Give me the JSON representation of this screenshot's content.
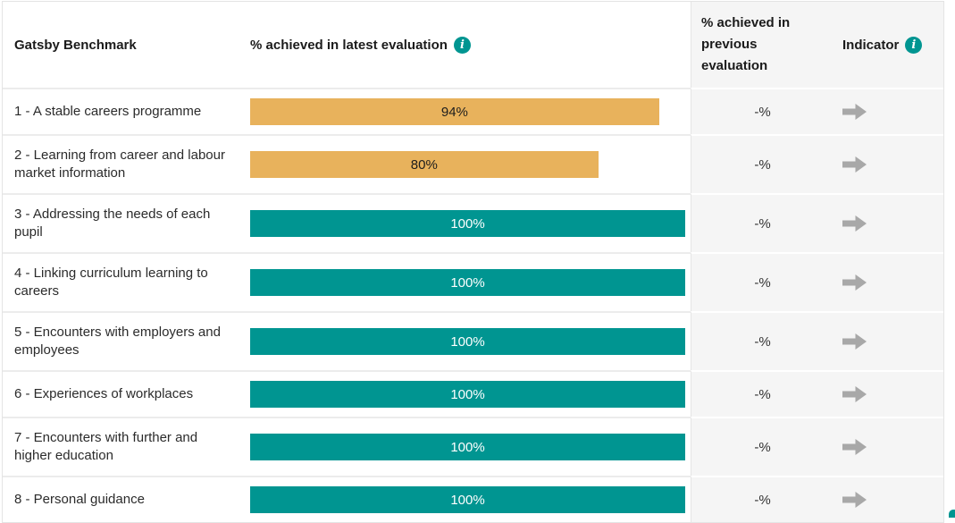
{
  "colors": {
    "teal": "#009591",
    "gold": "#E8B25C",
    "panel_background": "#F5F5F5",
    "bar_text_on_teal": "#FFFFFF",
    "bar_text_on_gold": "#1D1D1D",
    "arrow_gray": "#A8A8A8",
    "divider_white_region": "#ECECEC",
    "divider_gray_region": "#FFFFFF"
  },
  "header": {
    "benchmark_label": "Gatsby Benchmark",
    "latest_label": "% achieved in latest evaluation",
    "previous_label": "% achieved in previous evaluation",
    "indicator_label": "Indicator"
  },
  "icons": {
    "info_glyph": "i",
    "indicator_icon": "right-arrow"
  },
  "rows": [
    {
      "label": "1 - A stable careers programme",
      "latest": "94%",
      "value": 94,
      "previous": "-%",
      "bar_color": "gold"
    },
    {
      "label": "2 - Learning from career and labour market information",
      "latest": "80%",
      "value": 80,
      "previous": "-%",
      "bar_color": "gold"
    },
    {
      "label": "3 - Addressing the needs of each pupil",
      "latest": "100%",
      "value": 100,
      "previous": "-%",
      "bar_color": "teal"
    },
    {
      "label": "4 - Linking curriculum learning to careers",
      "latest": "100%",
      "value": 100,
      "previous": "-%",
      "bar_color": "teal"
    },
    {
      "label": "5 - Encounters with employers and employees",
      "latest": "100%",
      "value": 100,
      "previous": "-%",
      "bar_color": "teal"
    },
    {
      "label": "6 - Experiences of workplaces",
      "latest": "100%",
      "value": 100,
      "previous": "-%",
      "bar_color": "teal"
    },
    {
      "label": "7 - Encounters with further and higher education",
      "latest": "100%",
      "value": 100,
      "previous": "-%",
      "bar_color": "teal"
    },
    {
      "label": "8 - Personal guidance",
      "latest": "100%",
      "value": 100,
      "previous": "-%",
      "bar_color": "teal"
    }
  ],
  "chart_data": {
    "type": "bar",
    "orientation": "horizontal",
    "title": "Gatsby Benchmark",
    "categories": [
      "1 - A stable careers programme",
      "2 - Learning from career and labour market information",
      "3 - Addressing the needs of each pupil",
      "4 - Linking curriculum learning to careers",
      "5 - Encounters with employers and employees",
      "6 - Experiences of workplaces",
      "7 - Encounters with further and higher education",
      "8 - Personal guidance"
    ],
    "series": [
      {
        "name": "% achieved in latest evaluation",
        "values": [
          94,
          80,
          100,
          100,
          100,
          100,
          100,
          100
        ]
      },
      {
        "name": "% achieved in previous evaluation",
        "values": [
          "-",
          "-",
          "-",
          "-",
          "-",
          "-",
          "-",
          "-"
        ]
      }
    ],
    "value_labels": [
      "94%",
      "80%",
      "100%",
      "100%",
      "100%",
      "100%",
      "100%",
      "100%"
    ],
    "xlim": [
      0,
      100
    ],
    "grid": false,
    "legend_position": "none",
    "bar_color_rule": "teal #009591 when 100%, gold #E8B25C when below 100%"
  }
}
